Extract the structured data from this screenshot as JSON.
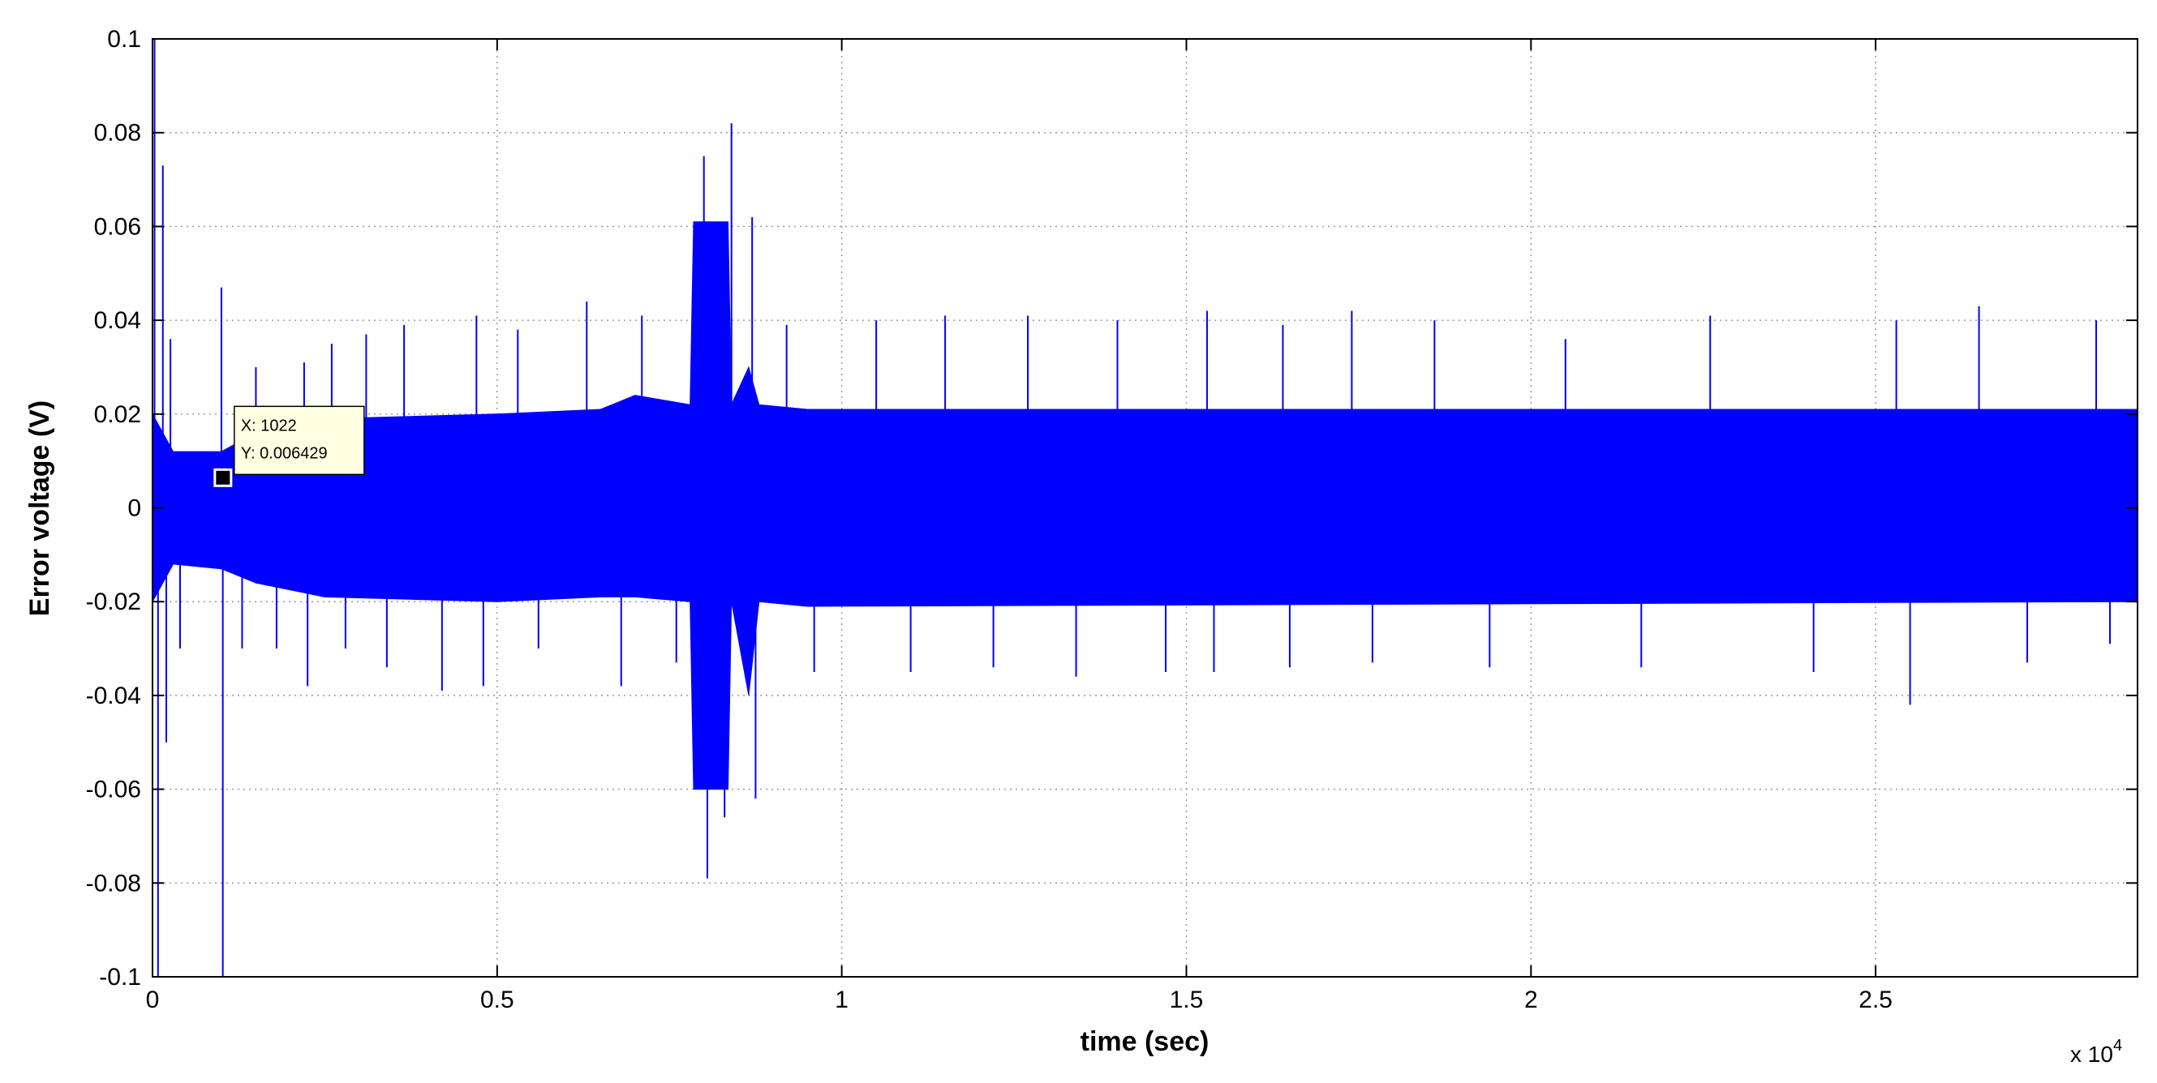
{
  "chart_data": {
    "type": "line",
    "title": "",
    "xlabel": "time (sec)",
    "ylabel": "Error voltage (V)",
    "xlim": [
      0,
      28800
    ],
    "ylim": [
      -0.1,
      0.1
    ],
    "x_ticks": [
      0,
      5000,
      10000,
      15000,
      20000,
      25000
    ],
    "x_tick_labels": [
      "0",
      "0.5",
      "1",
      "1.5",
      "2",
      "2.5"
    ],
    "x_exponent_prefix": "x 10",
    "x_exponent_power": "4",
    "y_ticks": [
      -0.1,
      -0.08,
      -0.06,
      -0.04,
      -0.02,
      0,
      0.02,
      0.04,
      0.06,
      0.08,
      0.1
    ],
    "y_tick_labels": [
      "-0.1",
      "-0.08",
      "-0.06",
      "-0.04",
      "-0.02",
      "0",
      "0.02",
      "0.04",
      "0.06",
      "0.08",
      "0.1"
    ],
    "grid": true,
    "series": [
      {
        "color": "#0000ff",
        "envelope": [
          {
            "x": 0,
            "upper": 0.02,
            "lower": -0.02
          },
          {
            "x": 300,
            "upper": 0.012,
            "lower": -0.012
          },
          {
            "x": 1000,
            "upper": 0.012,
            "lower": -0.013
          },
          {
            "x": 1500,
            "upper": 0.016,
            "lower": -0.016
          },
          {
            "x": 2500,
            "upper": 0.019,
            "lower": -0.019
          },
          {
            "x": 5000,
            "upper": 0.02,
            "lower": -0.02
          },
          {
            "x": 6500,
            "upper": 0.021,
            "lower": -0.019
          },
          {
            "x": 7000,
            "upper": 0.024,
            "lower": -0.019
          },
          {
            "x": 7800,
            "upper": 0.022,
            "lower": -0.02
          },
          {
            "x": 7850,
            "upper": 0.061,
            "lower": -0.06
          },
          {
            "x": 8350,
            "upper": 0.061,
            "lower": -0.06
          },
          {
            "x": 8400,
            "upper": 0.022,
            "lower": -0.02
          },
          {
            "x": 8650,
            "upper": 0.03,
            "lower": -0.04
          },
          {
            "x": 8800,
            "upper": 0.022,
            "lower": -0.02
          },
          {
            "x": 9500,
            "upper": 0.021,
            "lower": -0.021
          },
          {
            "x": 28800,
            "upper": 0.021,
            "lower": -0.02
          }
        ],
        "spikes": [
          {
            "x": 30,
            "y": 0.1
          },
          {
            "x": 80,
            "y": -0.1
          },
          {
            "x": 150,
            "y": 0.073
          },
          {
            "x": 200,
            "y": -0.05
          },
          {
            "x": 260,
            "y": 0.036
          },
          {
            "x": 400,
            "y": -0.03
          },
          {
            "x": 1000,
            "y": 0.047
          },
          {
            "x": 1020,
            "y": -0.1
          },
          {
            "x": 1300,
            "y": -0.03
          },
          {
            "x": 1500,
            "y": 0.03
          },
          {
            "x": 1800,
            "y": -0.03
          },
          {
            "x": 2200,
            "y": 0.031
          },
          {
            "x": 2250,
            "y": -0.038
          },
          {
            "x": 2600,
            "y": 0.035
          },
          {
            "x": 2800,
            "y": -0.03
          },
          {
            "x": 3100,
            "y": 0.037
          },
          {
            "x": 3400,
            "y": -0.034
          },
          {
            "x": 3650,
            "y": 0.039
          },
          {
            "x": 4200,
            "y": -0.039
          },
          {
            "x": 4700,
            "y": 0.041
          },
          {
            "x": 4800,
            "y": -0.038
          },
          {
            "x": 5300,
            "y": 0.038
          },
          {
            "x": 5600,
            "y": -0.03
          },
          {
            "x": 6300,
            "y": 0.044
          },
          {
            "x": 6800,
            "y": -0.038
          },
          {
            "x": 7100,
            "y": 0.041
          },
          {
            "x": 7600,
            "y": -0.033
          },
          {
            "x": 8000,
            "y": 0.075
          },
          {
            "x": 8050,
            "y": -0.079
          },
          {
            "x": 8300,
            "y": -0.066
          },
          {
            "x": 8400,
            "y": 0.082
          },
          {
            "x": 8700,
            "y": 0.062
          },
          {
            "x": 8750,
            "y": -0.062
          },
          {
            "x": 9200,
            "y": 0.039
          },
          {
            "x": 9600,
            "y": -0.035
          },
          {
            "x": 10500,
            "y": 0.04
          },
          {
            "x": 11000,
            "y": -0.035
          },
          {
            "x": 11500,
            "y": 0.041
          },
          {
            "x": 12200,
            "y": -0.034
          },
          {
            "x": 12700,
            "y": 0.041
          },
          {
            "x": 13400,
            "y": -0.036
          },
          {
            "x": 14000,
            "y": 0.04
          },
          {
            "x": 14700,
            "y": -0.035
          },
          {
            "x": 15300,
            "y": 0.042
          },
          {
            "x": 15400,
            "y": -0.035
          },
          {
            "x": 16400,
            "y": 0.039
          },
          {
            "x": 16500,
            "y": -0.034
          },
          {
            "x": 17400,
            "y": 0.042
          },
          {
            "x": 17700,
            "y": -0.033
          },
          {
            "x": 18600,
            "y": 0.04
          },
          {
            "x": 19400,
            "y": -0.034
          },
          {
            "x": 20500,
            "y": 0.036
          },
          {
            "x": 21600,
            "y": -0.034
          },
          {
            "x": 22600,
            "y": 0.041
          },
          {
            "x": 24100,
            "y": -0.035
          },
          {
            "x": 25300,
            "y": 0.04
          },
          {
            "x": 25500,
            "y": -0.042
          },
          {
            "x": 26500,
            "y": 0.043
          },
          {
            "x": 27200,
            "y": -0.033
          },
          {
            "x": 28200,
            "y": 0.04
          },
          {
            "x": 28400,
            "y": -0.029
          }
        ]
      }
    ],
    "datatip": {
      "x_text": "X: 1022",
      "y_text": "Y: 0.006429",
      "x": 1022,
      "y": 0.006429
    }
  }
}
